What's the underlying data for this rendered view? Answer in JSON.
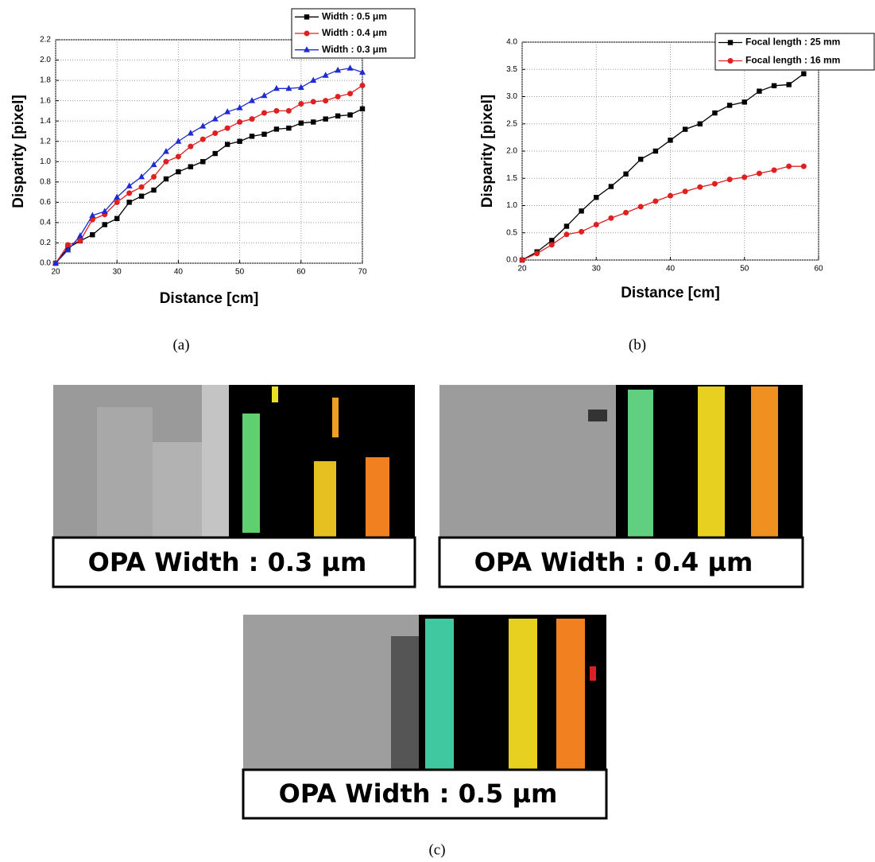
{
  "chart_data": [
    {
      "type": "line",
      "x_label": "Distance [cm]",
      "y_label": "Disparity [pixel]",
      "x": [
        20,
        22,
        24,
        26,
        28,
        30,
        32,
        34,
        36,
        38,
        40,
        42,
        44,
        46,
        48,
        50,
        52,
        54,
        56,
        58,
        60,
        62,
        64,
        66,
        68,
        70
      ],
      "series": [
        {
          "name": "Width : 0.5 μm",
          "color": "#000000",
          "marker": "square",
          "values": [
            0,
            0.15,
            0.22,
            0.28,
            0.38,
            0.44,
            0.6,
            0.66,
            0.72,
            0.83,
            0.9,
            0.95,
            1.0,
            1.08,
            1.17,
            1.2,
            1.25,
            1.27,
            1.32,
            1.33,
            1.38,
            1.39,
            1.42,
            1.45,
            1.46,
            1.52
          ]
        },
        {
          "name": "Width : 0.4 μm",
          "color": "#e02020",
          "marker": "circle",
          "values": [
            0,
            0.18,
            0.22,
            0.43,
            0.48,
            0.6,
            0.69,
            0.75,
            0.85,
            1.0,
            1.05,
            1.15,
            1.22,
            1.28,
            1.33,
            1.39,
            1.42,
            1.48,
            1.5,
            1.5,
            1.57,
            1.59,
            1.6,
            1.64,
            1.67,
            1.75
          ]
        },
        {
          "name": "Width : 0.3 μm",
          "color": "#1f2bd0",
          "marker": "triangle",
          "values": [
            0,
            0.13,
            0.27,
            0.47,
            0.51,
            0.65,
            0.76,
            0.85,
            0.97,
            1.1,
            1.2,
            1.28,
            1.35,
            1.42,
            1.49,
            1.53,
            1.6,
            1.65,
            1.72,
            1.72,
            1.73,
            1.8,
            1.85,
            1.9,
            1.92,
            1.88
          ]
        }
      ],
      "xlim": [
        20,
        70
      ],
      "xticks": [
        20,
        30,
        40,
        50,
        60,
        70
      ],
      "ylim": [
        0,
        2.2
      ],
      "yticks": [
        {
          "value": 0,
          "label": "0.0"
        },
        0.2,
        0.4,
        0.6,
        0.8,
        {
          "value": 1,
          "label": "1.0"
        },
        1.2,
        1.4,
        1.6,
        1.8,
        {
          "value": 2,
          "label": "2.0"
        },
        2.2
      ],
      "grid": true,
      "legend": "top-right"
    },
    {
      "type": "line",
      "x_label": "Distance [cm]",
      "y_label": "Disparity [pixel]",
      "x": [
        20,
        22,
        24,
        26,
        28,
        30,
        32,
        34,
        36,
        38,
        40,
        42,
        44,
        46,
        48,
        50,
        52,
        54,
        56,
        58
      ],
      "series": [
        {
          "name": "Focal length : 25 mm",
          "color": "#000000",
          "marker": "square",
          "values": [
            0,
            0.15,
            0.36,
            0.62,
            0.9,
            1.15,
            1.35,
            1.58,
            1.85,
            2.0,
            2.2,
            2.4,
            2.5,
            2.7,
            2.84,
            2.9,
            3.1,
            3.2,
            3.22,
            3.42
          ]
        },
        {
          "name": "Focal length : 16 mm",
          "color": "#e02020",
          "marker": "circle",
          "values": [
            0,
            0.12,
            0.28,
            0.47,
            0.52,
            0.65,
            0.77,
            0.87,
            0.98,
            1.08,
            1.18,
            1.26,
            1.34,
            1.4,
            1.48,
            1.52,
            1.59,
            1.65,
            1.72,
            1.72
          ]
        }
      ],
      "xlim": [
        20,
        60
      ],
      "xticks": [
        20,
        30,
        40,
        50,
        60
      ],
      "ylim": [
        0,
        4
      ],
      "yticks": [
        {
          "value": 0,
          "label": "0.0"
        },
        0.5,
        {
          "value": 1,
          "label": "1.0"
        },
        1.5,
        {
          "value": 2,
          "label": "2.0"
        },
        2.5,
        {
          "value": 3,
          "label": "3.0"
        },
        3.5,
        {
          "value": 4,
          "label": "4.0"
        }
      ],
      "grid": true,
      "legend": "top-right"
    }
  ],
  "panel_labels": [
    "(a)",
    "(b)",
    "(c)"
  ],
  "panels": [
    {
      "caption": "OPA Width : 0.3 µm"
    },
    {
      "caption": "OPA Width : 0.4 µm"
    },
    {
      "caption": "OPA Width : 0.5 µm"
    }
  ]
}
